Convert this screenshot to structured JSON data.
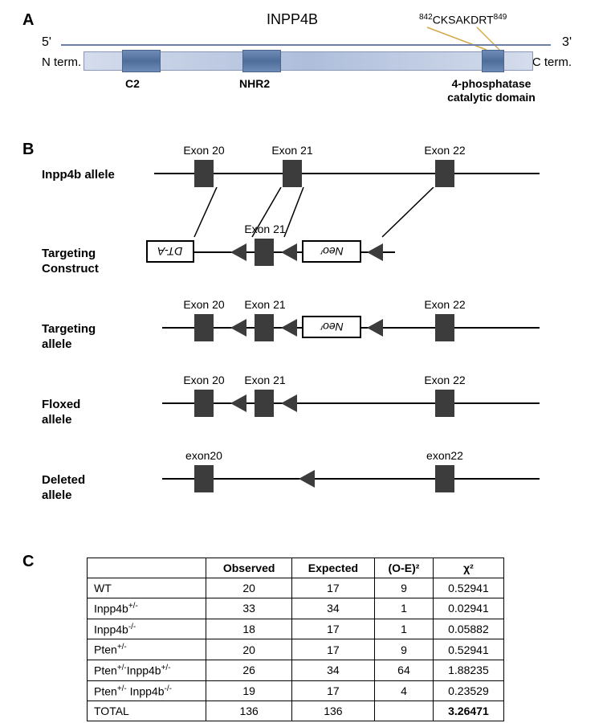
{
  "panelA": {
    "label": "A",
    "title": "INPP4B",
    "motif_pre": "842",
    "motif_seq": "CKSAKDRT",
    "motif_post": "849",
    "five_prime": "5'",
    "three_prime": "3'",
    "n_term": "N term.",
    "c_term": "C term.",
    "d1": "C2",
    "d2": "NHR2",
    "d3": "4-phosphatase\ncatalytic domain"
  },
  "panelB": {
    "label": "B",
    "rows": [
      {
        "label": "Inpp4b allele"
      },
      {
        "label": "Targeting\nConstruct"
      },
      {
        "label": "Targeting\nallele"
      },
      {
        "label": "Floxed\nallele"
      },
      {
        "label": "Deleted\nallele"
      }
    ],
    "exonLabels": {
      "e20": "Exon 20",
      "e21": "Exon 21",
      "e22": "Exon 22",
      "e20lc": "exon20",
      "e22lc": "exon22"
    },
    "cassettes": {
      "dta": "DT-A",
      "neo": "Neoʳ"
    }
  },
  "panelC": {
    "label": "C",
    "headers": [
      "",
      "Observed",
      "Expected",
      "(O-E)²",
      "χ²"
    ],
    "rows": [
      {
        "g": "WT",
        "o": "20",
        "e": "17",
        "oe2": "9",
        "chi": "0.52941"
      },
      {
        "g": "Inpp4b+/-",
        "o": "33",
        "e": "34",
        "oe2": "1",
        "chi": "0.02941"
      },
      {
        "g": "Inpp4b-/-",
        "o": "18",
        "e": "17",
        "oe2": "1",
        "chi": "0.05882"
      },
      {
        "g": "Pten+/-",
        "o": "20",
        "e": "17",
        "oe2": "9",
        "chi": "0.52941"
      },
      {
        "g": "Pten+/-Inpp4b+/-",
        "o": "26",
        "e": "34",
        "oe2": "64",
        "chi": "1.88235"
      },
      {
        "g": "Pten+/- Inpp4b-/-",
        "o": "19",
        "e": "17",
        "oe2": "4",
        "chi": "0.23529"
      }
    ],
    "total": {
      "g": "TOTAL",
      "o": "136",
      "e": "136",
      "oe2": "",
      "chi": "3.26471"
    }
  }
}
